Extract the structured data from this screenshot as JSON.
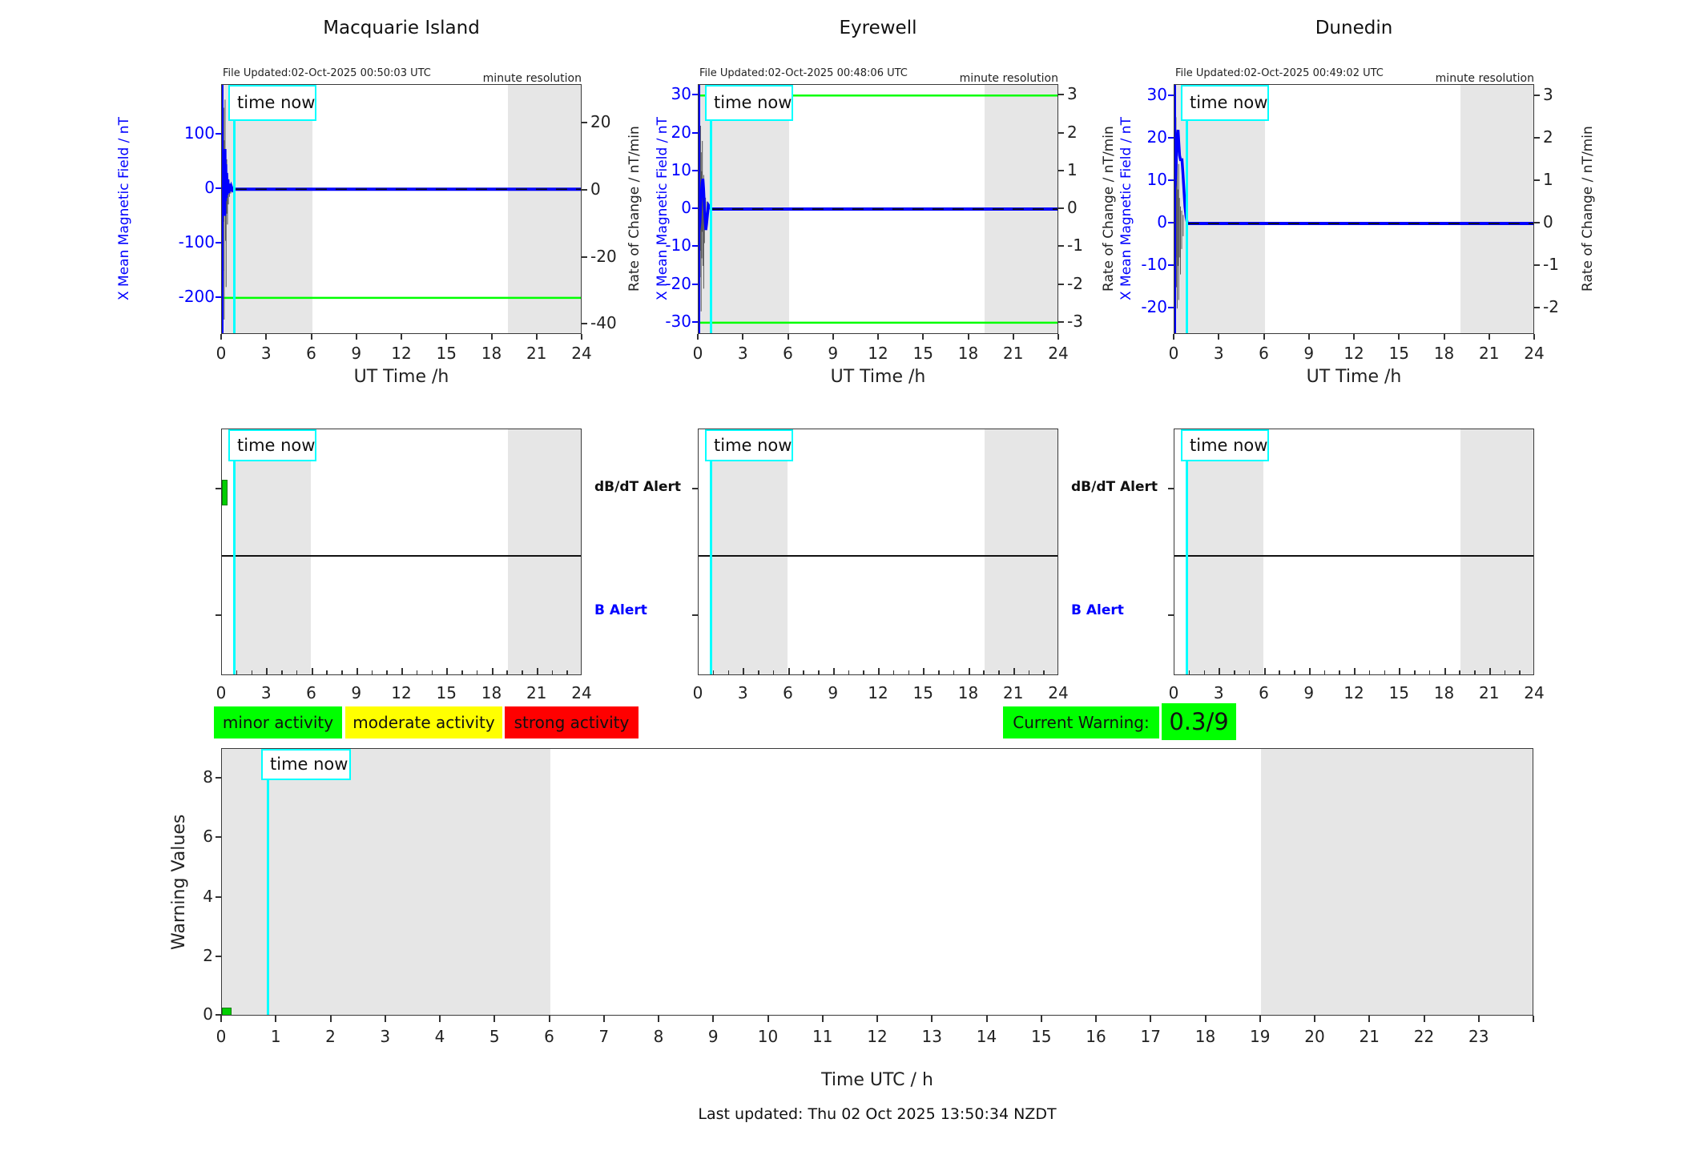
{
  "page": {
    "time_now_label": "time now",
    "resolution_note": "minute resolution",
    "last_updated": "Last updated: Thu 02 Oct 2025 13:50:34 NZDT"
  },
  "colors": {
    "blue": "#0000FF",
    "green": "#00FF00",
    "bar_green": "#00CE00",
    "cyan": "#00FFFF",
    "shade": "#E6E6E6",
    "dark": "#1A1A1A",
    "spike": "#555555",
    "yellow": "#FFFF00",
    "red": "#FF0000"
  },
  "legend": {
    "items": [
      {
        "label": "minor activity",
        "color": "#00FF00"
      },
      {
        "label": "moderate activity",
        "color": "#FFFF00"
      },
      {
        "label": "strong activity",
        "color": "#FF0000"
      }
    ]
  },
  "current_warning": {
    "label": "Current Warning:",
    "value": "0.3/9"
  },
  "alert_labels": {
    "dbdt": "dB/dT Alert",
    "b": "B Alert"
  },
  "alert_axis": {
    "x_ticks": [
      0,
      3,
      6,
      9,
      12,
      15,
      18,
      21,
      24
    ],
    "x_minor_step": 1,
    "shade_h": [
      [
        0.84,
        5.93
      ],
      [
        19.05,
        24
      ]
    ],
    "time_now_h": 0.84
  },
  "alert_plots": [
    {
      "station": "Macquarie Island",
      "show_labels": true,
      "dbdt_bar": {
        "x_start_h": 0,
        "x_end_h": 0.37,
        "level": "minor"
      }
    },
    {
      "station": "Eyrewell",
      "show_labels": true,
      "dbdt_bar": null
    },
    {
      "station": "Dunedin",
      "show_labels": false,
      "dbdt_bar": null
    }
  ],
  "chart_data": [
    {
      "type": "line",
      "title": "Macquarie Island",
      "file_updated": "File Updated:02-Oct-2025 00:50:03 UTC",
      "xlabel": "UT Time /h",
      "xlim": [
        0,
        24
      ],
      "x_ticks": [
        0,
        3,
        6,
        9,
        12,
        15,
        18,
        21,
        24
      ],
      "time_now_h": 0.84,
      "night_shade_h": [
        [
          0,
          6
        ],
        [
          19.05,
          24
        ]
      ],
      "left_axis": {
        "label": "X Mean Magnetic Field / nT",
        "ticks": [
          100,
          0,
          -100,
          -200
        ],
        "range": [
          192,
          -268
        ]
      },
      "right_axis": {
        "label": "Rate of Change / nT/min",
        "ticks": [
          20,
          0,
          -20,
          -40
        ],
        "range": [
          31.5,
          -43
        ]
      },
      "threshold_lines": [
        -200
      ],
      "series": {
        "baseline_value": 0,
        "mean_line": [
          [
            0,
            5
          ],
          [
            0.03,
            -35
          ],
          [
            0.05,
            32
          ],
          [
            0.07,
            -45
          ],
          [
            0.09,
            52
          ],
          [
            0.11,
            -42
          ],
          [
            0.13,
            62
          ],
          [
            0.15,
            -32
          ],
          [
            0.17,
            69
          ],
          [
            0.19,
            -49
          ],
          [
            0.21,
            74
          ],
          [
            0.23,
            -22
          ],
          [
            0.26,
            46
          ],
          [
            0.29,
            -16
          ],
          [
            0.32,
            30
          ],
          [
            0.36,
            -10
          ],
          [
            0.4,
            18
          ],
          [
            0.45,
            -7
          ],
          [
            0.5,
            10
          ],
          [
            0.56,
            -4
          ],
          [
            0.63,
            5
          ],
          [
            0.72,
            -2
          ],
          [
            0.8,
            0
          ],
          [
            24,
            0
          ]
        ],
        "minmax_spikes": [
          [
            0.04,
            55,
            -30
          ],
          [
            0.07,
            170,
            -40
          ],
          [
            0.09,
            80,
            -150
          ],
          [
            0.12,
            150,
            -60
          ],
          [
            0.15,
            90,
            -240
          ],
          [
            0.18,
            60,
            -45
          ],
          [
            0.21,
            165,
            -25
          ],
          [
            0.24,
            70,
            -95
          ],
          [
            0.28,
            45,
            -180
          ],
          [
            0.32,
            55,
            -45
          ],
          [
            0.37,
            28,
            -65
          ],
          [
            0.43,
            16,
            -28
          ],
          [
            0.5,
            10,
            -14
          ],
          [
            0.58,
            5,
            -8
          ]
        ]
      }
    },
    {
      "type": "line",
      "title": "Eyrewell",
      "file_updated": "File Updated:02-Oct-2025 00:48:06 UTC",
      "xlabel": "UT Time /h",
      "xlim": [
        0,
        24
      ],
      "x_ticks": [
        0,
        3,
        6,
        9,
        12,
        15,
        18,
        21,
        24
      ],
      "time_now_h": 0.84,
      "night_shade_h": [
        [
          0,
          6
        ],
        [
          19.05,
          24
        ]
      ],
      "left_axis": {
        "label": "X Mean Magnetic Field / nT",
        "ticks": [
          30,
          20,
          10,
          0,
          -10,
          -20,
          -30
        ],
        "range": [
          32.8,
          -33.2
        ]
      },
      "right_axis": {
        "label": "Rate of Change / nT/min",
        "ticks": [
          3,
          2,
          1,
          0,
          -1,
          -2,
          -3
        ],
        "range": [
          3.28,
          -3.32
        ]
      },
      "threshold_lines": [
        30,
        -30
      ],
      "series": {
        "baseline_value": 0,
        "mean_line": [
          [
            0,
            -1
          ],
          [
            0.04,
            -5.5
          ],
          [
            0.09,
            -3.5
          ],
          [
            0.14,
            1.5
          ],
          [
            0.19,
            4.5
          ],
          [
            0.24,
            7
          ],
          [
            0.29,
            8
          ],
          [
            0.33,
            5.5
          ],
          [
            0.38,
            1.5
          ],
          [
            0.43,
            -2.5
          ],
          [
            0.48,
            -5.5
          ],
          [
            0.53,
            -4
          ],
          [
            0.59,
            -1.5
          ],
          [
            0.66,
            1
          ],
          [
            0.74,
            0.5
          ],
          [
            0.85,
            0
          ],
          [
            24,
            0
          ]
        ],
        "minmax_spikes": [
          [
            0.04,
            12,
            -8
          ],
          [
            0.07,
            25,
            -5
          ],
          [
            0.1,
            9,
            -18
          ],
          [
            0.13,
            22,
            -11
          ],
          [
            0.17,
            15,
            -27
          ],
          [
            0.21,
            10,
            -13
          ],
          [
            0.25,
            18,
            -6
          ],
          [
            0.29,
            6,
            -15
          ],
          [
            0.34,
            9,
            -21
          ],
          [
            0.39,
            5,
            -9
          ],
          [
            0.46,
            3,
            -5
          ],
          [
            0.55,
            2,
            -3
          ]
        ]
      }
    },
    {
      "type": "line",
      "title": "Dunedin",
      "file_updated": "File Updated:02-Oct-2025 00:49:02 UTC",
      "xlabel": "UT Time /h",
      "xlim": [
        0,
        24
      ],
      "x_ticks": [
        0,
        3,
        6,
        9,
        12,
        15,
        18,
        21,
        24
      ],
      "time_now_h": 0.84,
      "night_shade_h": [
        [
          0,
          6
        ],
        [
          19.05,
          24
        ]
      ],
      "left_axis": {
        "label": "X Mean Magnetic Field / nT",
        "ticks": [
          30,
          20,
          10,
          0,
          -10,
          -20
        ],
        "range": [
          32.6,
          -26.2
        ]
      },
      "right_axis": {
        "label": "Rate of Change / nT/min",
        "ticks": [
          3,
          2,
          1,
          0,
          -1,
          -2
        ],
        "range": [
          3.26,
          -2.62
        ]
      },
      "threshold_lines": [],
      "series": {
        "baseline_value": 0,
        "mean_line": [
          [
            0,
            8
          ],
          [
            0.04,
            9
          ],
          [
            0.09,
            12
          ],
          [
            0.14,
            17
          ],
          [
            0.19,
            21
          ],
          [
            0.24,
            22
          ],
          [
            0.29,
            19
          ],
          [
            0.34,
            16
          ],
          [
            0.4,
            15
          ],
          [
            0.5,
            15
          ],
          [
            0.56,
            12
          ],
          [
            0.63,
            8
          ],
          [
            0.7,
            4
          ],
          [
            0.78,
            1.5
          ],
          [
            0.86,
            0
          ],
          [
            24,
            0
          ]
        ],
        "minmax_spikes": [
          [
            0.06,
            12,
            -5
          ],
          [
            0.1,
            25,
            -8
          ],
          [
            0.14,
            10,
            -15
          ],
          [
            0.18,
            18,
            -20
          ],
          [
            0.23,
            8,
            -10
          ],
          [
            0.28,
            14,
            -18
          ],
          [
            0.33,
            6,
            -8
          ],
          [
            0.4,
            4,
            -12
          ],
          [
            0.48,
            3,
            -6
          ],
          [
            0.58,
            2,
            -3
          ]
        ]
      }
    },
    {
      "type": "bar",
      "ylabel": "Warning Values",
      "xlabel": "Time UTC / h",
      "ylim": [
        0,
        9
      ],
      "y_ticks": [
        0,
        2,
        4,
        6,
        8
      ],
      "xlim": [
        0,
        24
      ],
      "x_tick_step": 1,
      "last_labeled_hour": 23,
      "time_now_h": 0.84,
      "night_shade_h": [
        [
          0,
          6
        ],
        [
          19,
          24
        ]
      ],
      "bars": [
        {
          "x_start_h": 0,
          "x_end_h": 0.17,
          "value": 0.3,
          "color": "#00CE00"
        }
      ]
    }
  ]
}
